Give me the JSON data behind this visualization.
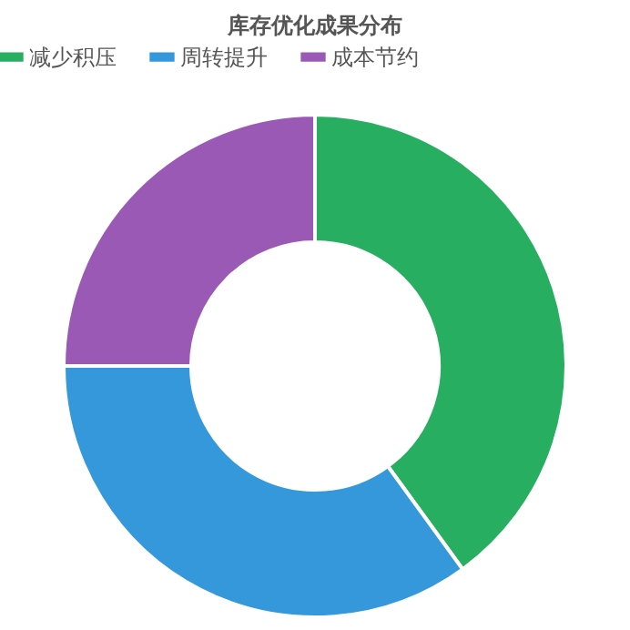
{
  "chart_data": {
    "type": "donut",
    "title": "库存优化成果分布",
    "categories": [
      "减少积压",
      "周转提升",
      "成本节约"
    ],
    "values": [
      40,
      35,
      25
    ],
    "colors": [
      "#27ae60",
      "#3498db",
      "#9b59b6"
    ],
    "legend": "top"
  }
}
